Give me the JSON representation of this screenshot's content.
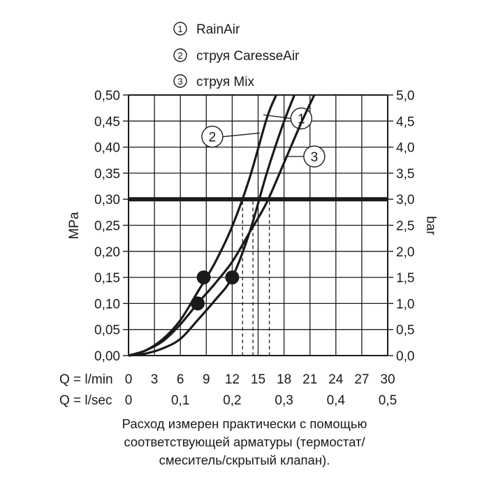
{
  "legend": [
    {
      "num": "1",
      "label": "RainAir"
    },
    {
      "num": "2",
      "label": "струя CaresseAir"
    },
    {
      "num": "3",
      "label": "струя Mix"
    }
  ],
  "footnote": [
    "Расход измерен практически с помощью",
    "соответствующей арматуры (термостат/",
    "смеситель/скрытый клапан)."
  ],
  "chart_data": {
    "type": "line",
    "title": "",
    "xlabel": "Q = l/min",
    "x_secondary_label": "Q = l/sec",
    "ylabel": "MPa",
    "y_secondary_label": "bar",
    "xlim": [
      0,
      30
    ],
    "ylim": [
      0,
      0.5
    ],
    "x_ticks": [
      "0",
      "3",
      "6",
      "9",
      "12",
      "15",
      "18",
      "21",
      "24",
      "27",
      "30"
    ],
    "x_secondary_ticks": [
      "0",
      "0,1",
      "0,2",
      "0,3",
      "0,4",
      "0,5"
    ],
    "y_ticks": [
      "0,00",
      "0,05",
      "0,10",
      "0,15",
      "0,20",
      "0,25",
      "0,30",
      "0,35",
      "0,40",
      "0,45",
      "0,50"
    ],
    "y_secondary_ticks": [
      "0,0",
      "0,5",
      "1,0",
      "1,5",
      "2,0",
      "2,5",
      "3,0",
      "3,5",
      "4,0",
      "4,5",
      "5,0"
    ],
    "grid": true,
    "legend_position": "top",
    "reference_line": {
      "y": 0.3
    },
    "series": [
      {
        "name": "1",
        "label_at": [
          20,
          0.455
        ],
        "marker": [
          12,
          0.15
        ],
        "drop_x": 14.4,
        "x": [
          0,
          2,
          4,
          6,
          8,
          10,
          12,
          14,
          16,
          17.8,
          19.2
        ],
        "y": [
          0,
          0.004,
          0.014,
          0.032,
          0.068,
          0.106,
          0.15,
          0.236,
          0.35,
          0.44,
          0.5
        ]
      },
      {
        "name": "2",
        "label_at": [
          9.7,
          0.42
        ],
        "marker": [
          8.7,
          0.15
        ],
        "drop_x": 13.2,
        "x": [
          0,
          2,
          4,
          6,
          8,
          10,
          12,
          14,
          16,
          17.1
        ],
        "y": [
          0,
          0.01,
          0.032,
          0.068,
          0.122,
          0.178,
          0.248,
          0.34,
          0.455,
          0.5
        ]
      },
      {
        "name": "3",
        "label_at": [
          21.5,
          0.382
        ],
        "marker": [
          8,
          0.1
        ],
        "drop_x": 16.3,
        "x": [
          0,
          2,
          4,
          6,
          8,
          10,
          12,
          14,
          16,
          18,
          20,
          21.5
        ],
        "y": [
          0,
          0.01,
          0.028,
          0.06,
          0.1,
          0.138,
          0.18,
          0.236,
          0.294,
          0.37,
          0.447,
          0.5
        ]
      }
    ]
  }
}
